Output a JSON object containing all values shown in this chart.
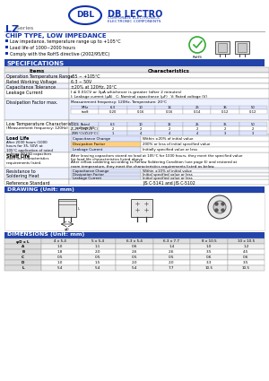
{
  "bg_color": "#ffffff",
  "header_bg": "#2244aa",
  "header_fg": "#ffffff",
  "blue_color": "#1133aa",
  "company_name": "DB LECTRO",
  "company_sub1": "CORPORATE ELECTRONICS",
  "company_sub2": "ELECTRONIC COMPONENTS",
  "series": "LZ",
  "series_suffix": " Series",
  "chip_type": "CHIP TYPE, LOW IMPEDANCE",
  "features": [
    "Low impedance, temperature range up to +105°C",
    "Load life of 1000~2000 hours",
    "Comply with the RoHS directive (2002/95/EC)"
  ],
  "spec_title": "SPECIFICATIONS",
  "drawing_title": "DRAWING (Unit: mm)",
  "dimensions_title": "DIMENSIONS (Unit: mm)",
  "dim_col_headers": [
    "φD x L",
    "4 x 5.4",
    "5 x 5.4",
    "6.3 x 5.4",
    "6.3 x 7.7",
    "8 x 10.5",
    "10 x 10.5"
  ],
  "dim_row_labels": [
    "A",
    "B",
    "C",
    "D",
    "L"
  ],
  "dim_data": [
    [
      "1.0",
      "1.1",
      "0.6",
      "1.4",
      "1.0",
      "1.2"
    ],
    [
      "1.8",
      "2.0",
      "2.6",
      "2.6",
      "3.5",
      "4.5"
    ],
    [
      "0.5",
      "0.5",
      "0.5",
      "0.5",
      "0.6",
      "0.6"
    ],
    [
      "1.0",
      "1.5",
      "2.0",
      "2.0",
      "3.3",
      "3.5"
    ],
    [
      "5.4",
      "5.4",
      "5.4",
      "7.7",
      "10.5",
      "10.5"
    ]
  ]
}
